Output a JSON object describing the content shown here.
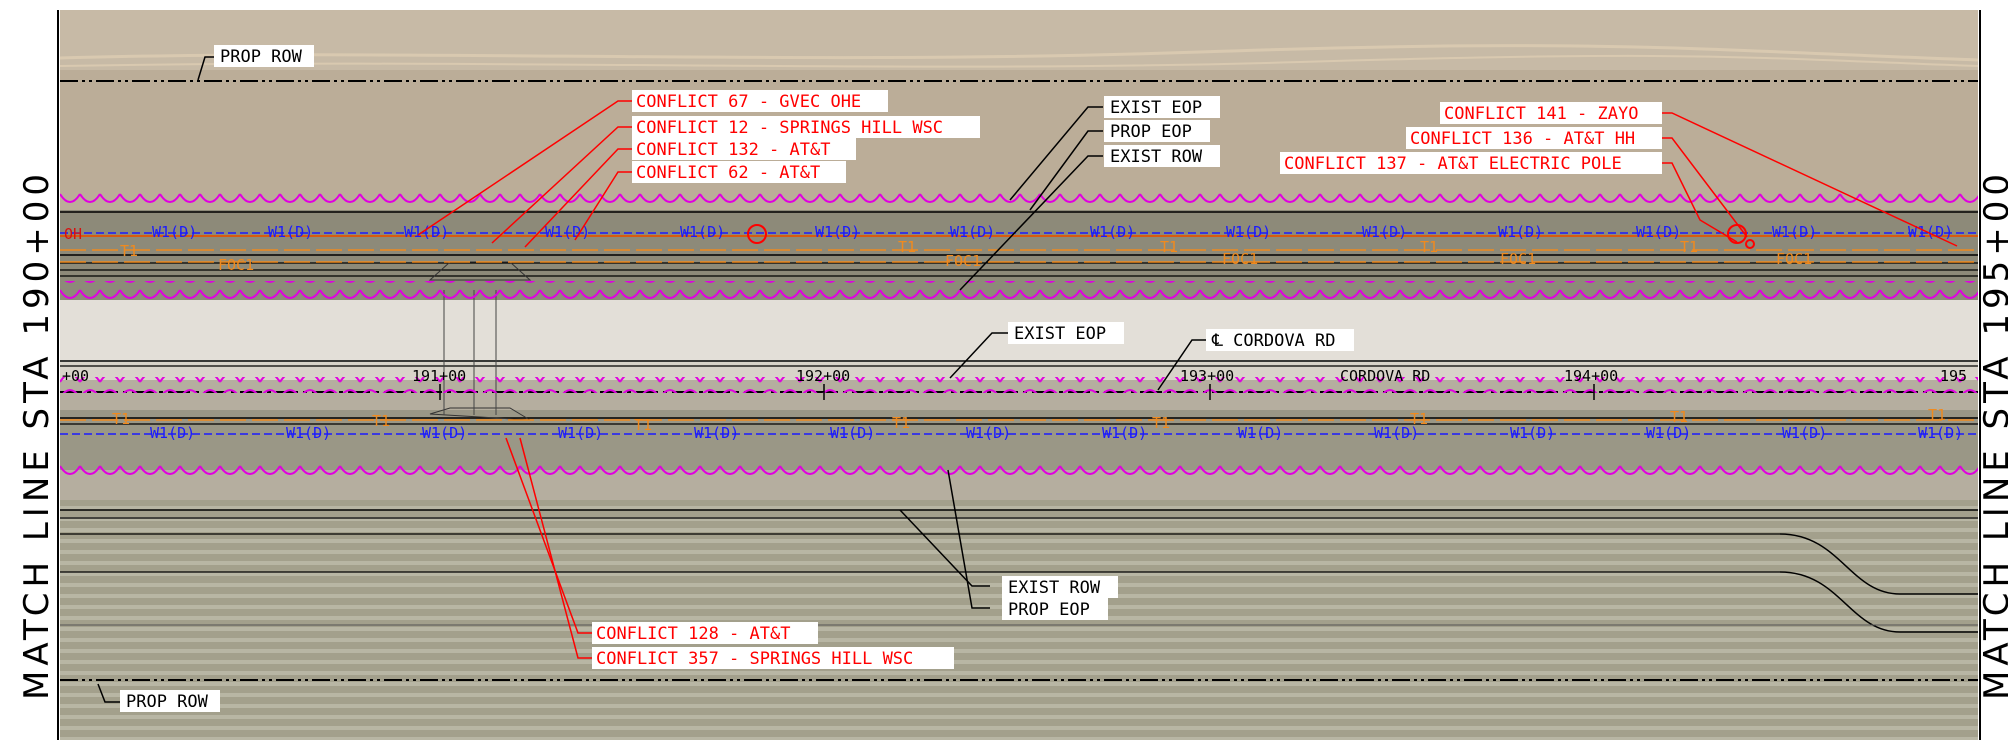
{
  "sheet": {
    "match_line_left": "MATCH LINE STA 190+00",
    "match_line_right": "MATCH LINE STA 195+00",
    "colors": {
      "aerial_top": "#b8ab97",
      "aerial_road": "#e2ddd6",
      "aerial_field": "#9c9a86",
      "conflict": "#ff0000",
      "water_line": "#1a1aff",
      "telecom": "#f08a1e",
      "tree_line": "#e000e0",
      "linework": "#000000"
    }
  },
  "labels": {
    "prop_row_top": "PROP ROW",
    "prop_row_bottom": "PROP ROW",
    "exist_eop_top": "EXIST EOP",
    "prop_eop_top": "PROP EOP",
    "exist_row_top": "EXIST ROW",
    "exist_eop_mid": "EXIST EOP",
    "centerline": "℄ CORDOVA RD",
    "road_name": "CORDOVA RD",
    "exist_row_bottom": "EXIST ROW",
    "prop_eop_bottom": "PROP EOP"
  },
  "stations": [
    "+00",
    "191+00",
    "192+00",
    "193+00",
    "194+00",
    "195"
  ],
  "conflicts": {
    "c67": "CONFLICT 67 - GVEC OHE",
    "c12": "CONFLICT 12 - SPRINGS HILL WSC",
    "c132": "CONFLICT 132 - AT&T",
    "c62": "CONFLICT 62 - AT&T",
    "c141": "CONFLICT 141 - ZAYO",
    "c136": "CONFLICT 136 - AT&T HH",
    "c137": "CONFLICT 137 - AT&T ELECTRIC POLE",
    "c128": "CONFLICT 128 - AT&T",
    "c357": "CONFLICT 357 - SPRINGS HILL WSC"
  },
  "utility_tags": {
    "water": "W1(D)",
    "overhead": "OH",
    "fiber": "FOC1",
    "telephone": "T1"
  }
}
